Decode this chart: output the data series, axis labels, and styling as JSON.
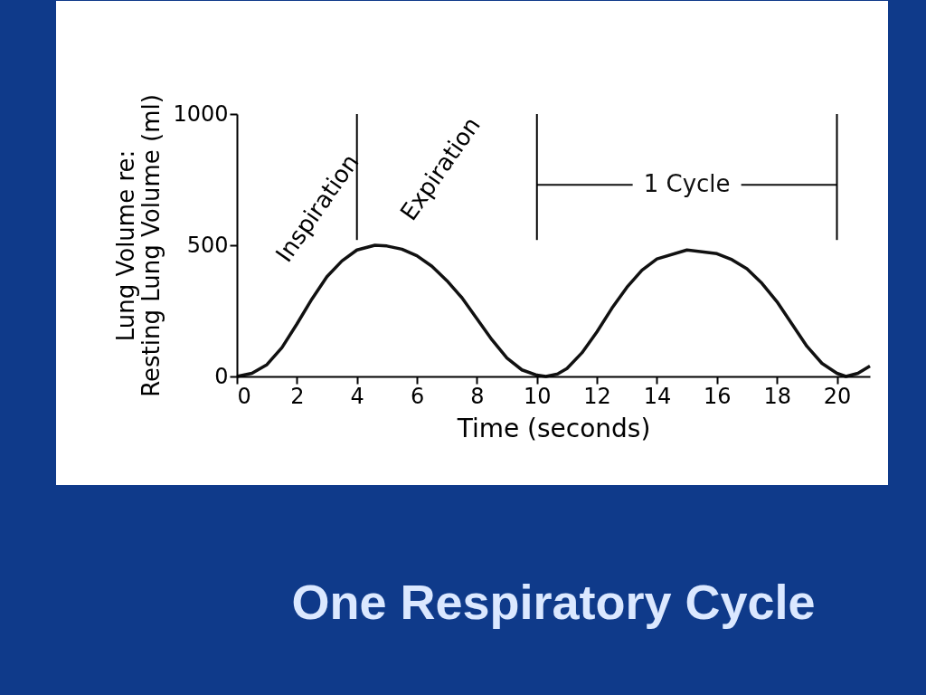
{
  "chart_data": {
    "type": "line",
    "title": "One Respiratory Cycle",
    "xlabel": "Time (seconds)",
    "ylabel": "Lung Volume re:\nResting Lung Volume (ml)",
    "x": [
      0,
      0.5,
      1,
      1.5,
      2,
      2.5,
      3,
      3.5,
      4,
      4.6,
      5,
      5.5,
      6,
      6.5,
      7,
      7.5,
      8,
      8.5,
      9,
      9.5,
      10,
      10.3,
      10.7,
      11,
      11.5,
      12,
      12.5,
      13,
      13.5,
      14,
      15,
      16,
      16.5,
      17,
      17.5,
      18,
      18.5,
      19,
      19.5,
      20,
      20.3,
      20.7,
      21.1
    ],
    "series": [
      {
        "color": "#111111",
        "values": [
          0,
          12,
          45,
          110,
          200,
          295,
          380,
          440,
          482,
          500,
          497,
          485,
          460,
          420,
          365,
          300,
          220,
          140,
          70,
          25,
          5,
          0,
          10,
          30,
          90,
          170,
          260,
          340,
          405,
          448,
          482,
          468,
          445,
          410,
          355,
          285,
          200,
          115,
          50,
          12,
          0,
          12,
          40
        ]
      },
      {
        "type": "line",
        "name": "1 Cycle",
        "color": "#111111",
        "x": [
          10,
          20
        ],
        "values": [
          730,
          730
        ]
      }
    ],
    "xlim": [
      0,
      21.1
    ],
    "ylim": [
      0,
      1000
    ],
    "xticks": [
      0,
      2,
      4,
      6,
      8,
      10,
      12,
      14,
      16,
      18,
      20
    ],
    "yticks": [
      0,
      500,
      1000
    ],
    "grid": false,
    "legend": false,
    "marker": "none",
    "line_style": "solid",
    "ref_lines": [
      {
        "axis": "x",
        "value": 4
      },
      {
        "axis": "x",
        "value": 10
      },
      {
        "axis": "x",
        "value": 20
      }
    ],
    "annotations": [
      "Inspiration",
      "Expiration"
    ]
  }
}
